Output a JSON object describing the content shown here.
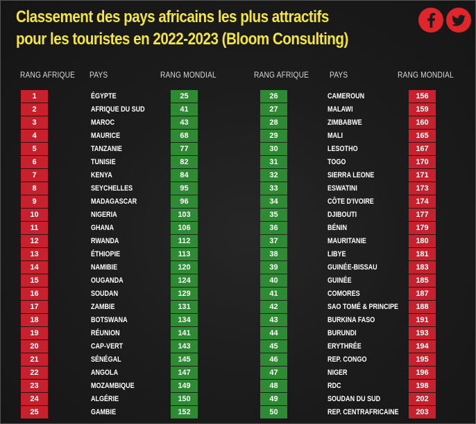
{
  "title_line1": "Classement des pays africains les plus attractifs",
  "title_line2": "pour les touristes en 2022-2023 (Bloom Consulting)",
  "icons": {
    "facebook": "facebook-icon",
    "twitter": "twitter-icon"
  },
  "colors": {
    "title": "#f4e53a",
    "red": "#c8212d",
    "green": "#2f8a34",
    "social": "#e0262a"
  },
  "headers": {
    "rang_afrique": "RANG AFRIQUE",
    "pays": "PAYS",
    "rang_mondial": "RANG MONDIAL"
  },
  "left_table": [
    {
      "rank": "1",
      "country": "ÉGYPTE",
      "world": "25"
    },
    {
      "rank": "2",
      "country": "AFRIQUE DU SUD",
      "world": "41"
    },
    {
      "rank": "3",
      "country": "MAROC",
      "world": "43"
    },
    {
      "rank": "4",
      "country": "MAURICE",
      "world": "68"
    },
    {
      "rank": "5",
      "country": "TANZANIE",
      "world": "77"
    },
    {
      "rank": "6",
      "country": "TUNISIE",
      "world": "82"
    },
    {
      "rank": "7",
      "country": "KENYA",
      "world": "84"
    },
    {
      "rank": "8",
      "country": "SEYCHELLES",
      "world": "95"
    },
    {
      "rank": "9",
      "country": "MADAGASCAR",
      "world": "96"
    },
    {
      "rank": "10",
      "country": "NIGERIA",
      "world": "103"
    },
    {
      "rank": "11",
      "country": "GHANA",
      "world": "106"
    },
    {
      "rank": "12",
      "country": "RWANDA",
      "world": "112"
    },
    {
      "rank": "13",
      "country": "ÉTHIOPIE",
      "world": "113"
    },
    {
      "rank": "14",
      "country": "NAMIBIE",
      "world": "120"
    },
    {
      "rank": "15",
      "country": "OUGANDA",
      "world": "124"
    },
    {
      "rank": "16",
      "country": "SOUDAN",
      "world": "129"
    },
    {
      "rank": "17",
      "country": "ZAMBIE",
      "world": "131"
    },
    {
      "rank": "18",
      "country": "BOTSWANA",
      "world": "134"
    },
    {
      "rank": "19",
      "country": "RÉUNION",
      "world": "141"
    },
    {
      "rank": "20",
      "country": "CAP-VERT",
      "world": "143"
    },
    {
      "rank": "21",
      "country": "SÉNÉGAL",
      "world": "145"
    },
    {
      "rank": "22",
      "country": "ANGOLA",
      "world": "147"
    },
    {
      "rank": "23",
      "country": "MOZAMBIQUE",
      "world": "149"
    },
    {
      "rank": "24",
      "country": "ALGÉRIE",
      "world": "150"
    },
    {
      "rank": "25",
      "country": "GAMBIE",
      "world": "152"
    }
  ],
  "right_table": [
    {
      "rank": "26",
      "country": "CAMEROUN",
      "world": "156"
    },
    {
      "rank": "27",
      "country": "MALAWI",
      "world": "159"
    },
    {
      "rank": "28",
      "country": "ZIMBABWE",
      "world": "160"
    },
    {
      "rank": "29",
      "country": "MALI",
      "world": "165"
    },
    {
      "rank": "30",
      "country": "LESOTHO",
      "world": "167"
    },
    {
      "rank": "31",
      "country": "TOGO",
      "world": "170"
    },
    {
      "rank": "32",
      "country": "SIERRA LEONE",
      "world": "171"
    },
    {
      "rank": "33",
      "country": "ESWATINI",
      "world": "173"
    },
    {
      "rank": "34",
      "country": "CÔTE D'IVOIRE",
      "world": "174"
    },
    {
      "rank": "35",
      "country": "DJIBOUTI",
      "world": "177"
    },
    {
      "rank": "36",
      "country": "BÉNIN",
      "world": "179"
    },
    {
      "rank": "37",
      "country": "MAURITANIE",
      "world": "180"
    },
    {
      "rank": "38",
      "country": "LIBYE",
      "world": "181"
    },
    {
      "rank": "39",
      "country": "GUINÉE-BISSAU",
      "world": "183"
    },
    {
      "rank": "40",
      "country": "GUINÉE",
      "world": "185"
    },
    {
      "rank": "41",
      "country": "COMORES",
      "world": "187"
    },
    {
      "rank": "42",
      "country": "SAO TOMÉ & PRINCIPE",
      "world": "188"
    },
    {
      "rank": "43",
      "country": "BURKINA FASO",
      "world": "191"
    },
    {
      "rank": "44",
      "country": "BURUNDI",
      "world": "193"
    },
    {
      "rank": "45",
      "country": "ERYTHRÉE",
      "world": "194"
    },
    {
      "rank": "46",
      "country": "REP. CONGO",
      "world": "195"
    },
    {
      "rank": "47",
      "country": "NIGER",
      "world": "196"
    },
    {
      "rank": "48",
      "country": "RDC",
      "world": "198"
    },
    {
      "rank": "49",
      "country": "SOUDAN DU SUD",
      "world": "202"
    },
    {
      "rank": "50",
      "country": "REP. CENTRAFRICAINE",
      "world": "203"
    }
  ]
}
